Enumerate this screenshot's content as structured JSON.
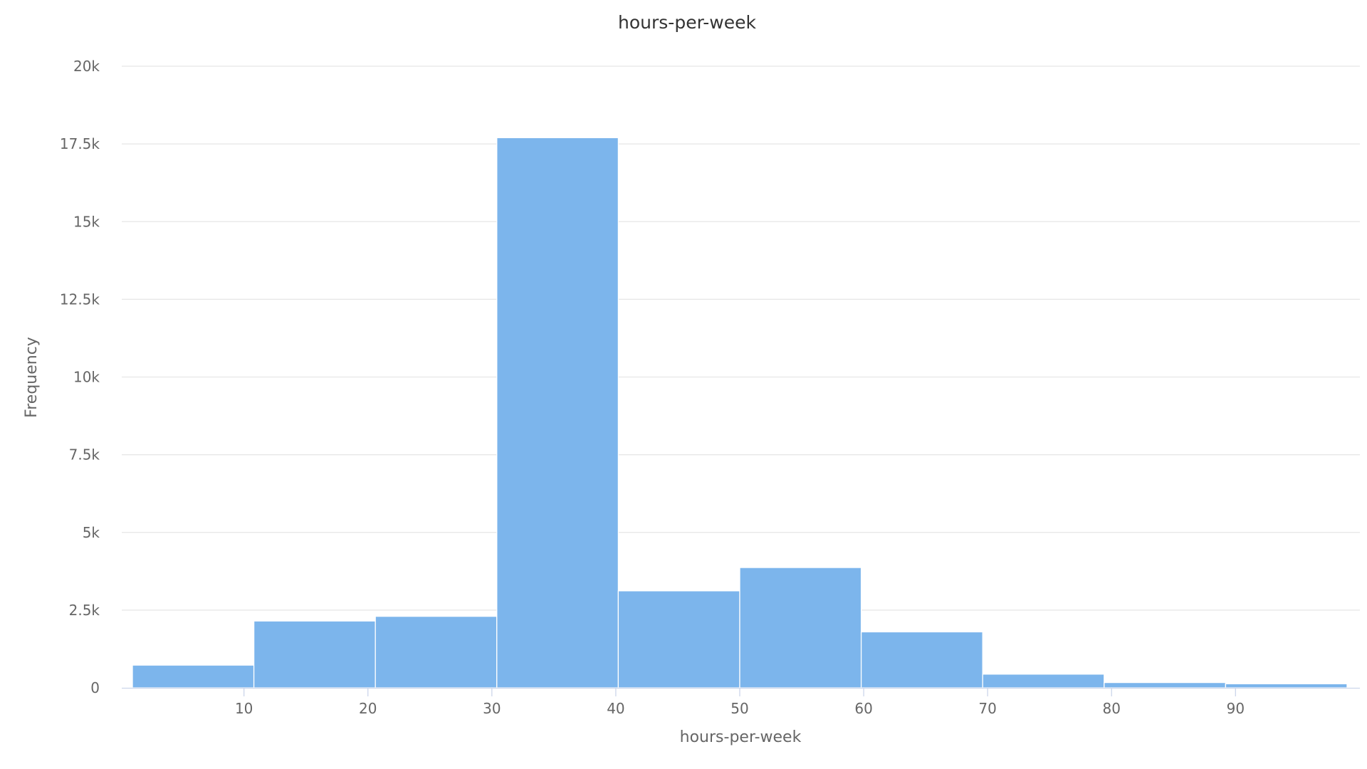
{
  "chart_data": {
    "type": "bar",
    "title": "hours-per-week",
    "xlabel": "hours-per-week",
    "ylabel": "Frequency",
    "color": "#7cb5ec",
    "grid": true,
    "legend": "none",
    "xlim": [
      1,
      99
    ],
    "ylim": [
      0,
      20000
    ],
    "x_ticks": [
      10,
      20,
      30,
      40,
      50,
      60,
      70,
      80,
      90
    ],
    "x_tick_labels": [
      "10",
      "20",
      "30",
      "40",
      "50",
      "60",
      "70",
      "80",
      "90"
    ],
    "y_ticks": [
      0,
      2500,
      5000,
      7500,
      10000,
      12500,
      15000,
      17500,
      20000
    ],
    "y_tick_labels": [
      "0",
      "2.5k",
      "5k",
      "7.5k",
      "10k",
      "12.5k",
      "15k",
      "17.5k",
      "20k"
    ],
    "bins": [
      {
        "start": 1,
        "end": 10.8,
        "value": 730
      },
      {
        "start": 10.8,
        "end": 20.6,
        "value": 2150
      },
      {
        "start": 20.6,
        "end": 30.4,
        "value": 2300
      },
      {
        "start": 30.4,
        "end": 40.2,
        "value": 17700
      },
      {
        "start": 40.2,
        "end": 50,
        "value": 3120
      },
      {
        "start": 50,
        "end": 59.8,
        "value": 3870
      },
      {
        "start": 59.8,
        "end": 69.6,
        "value": 1800
      },
      {
        "start": 69.6,
        "end": 79.4,
        "value": 440
      },
      {
        "start": 79.4,
        "end": 89.2,
        "value": 170
      },
      {
        "start": 89.2,
        "end": 99,
        "value": 130
      }
    ]
  }
}
